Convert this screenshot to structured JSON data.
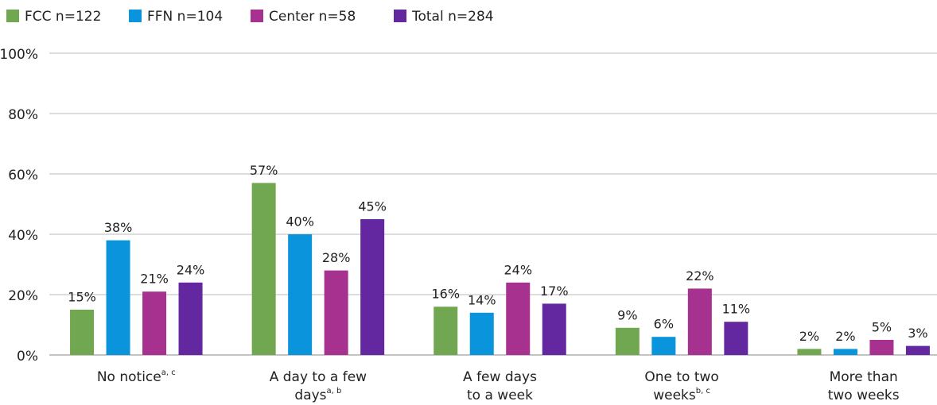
{
  "chart_data": {
    "type": "bar",
    "categories": [
      [
        "No notice"
      ],
      [
        "A day to a few",
        "days"
      ],
      [
        "A few days",
        "to a week"
      ],
      [
        "One to two",
        "weeks"
      ],
      [
        "More than",
        "two weeks"
      ]
    ],
    "category_notes": [
      "a, c",
      "a, b",
      null,
      "b, c",
      null
    ],
    "series": [
      {
        "name": "FCC n=122",
        "color": "#70a750",
        "values": [
          15,
          57,
          16,
          9,
          2
        ],
        "value_labels": [
          "15%",
          "57%",
          "16%",
          "9%",
          "2%"
        ]
      },
      {
        "name": "FFN n=104",
        "color": "#0a94db",
        "values": [
          38,
          40,
          14,
          6,
          2
        ],
        "value_labels": [
          "38%",
          "40%",
          "14%",
          "6%",
          "2%"
        ]
      },
      {
        "name": "Center n=58",
        "color": "#a6318f",
        "values": [
          21,
          28,
          24,
          22,
          5
        ],
        "value_labels": [
          "21%",
          "28%",
          "24%",
          "22%",
          "5%"
        ]
      },
      {
        "name": "Total n=284",
        "color": "#6328a0",
        "values": [
          24,
          45,
          17,
          11,
          3
        ],
        "value_labels": [
          "24%",
          "45%",
          "17%",
          "11%",
          "3%"
        ]
      }
    ],
    "ylim": [
      0,
      100
    ],
    "yticks": [
      {
        "value": 0,
        "label": "0%"
      },
      {
        "value": 20,
        "label": "20%"
      },
      {
        "value": 40,
        "label": "40%"
      },
      {
        "value": 60,
        "label": "60%"
      },
      {
        "value": 80,
        "label": "80%"
      },
      {
        "value": 100,
        "label": "100%"
      }
    ],
    "grid": true,
    "legend": "top"
  }
}
